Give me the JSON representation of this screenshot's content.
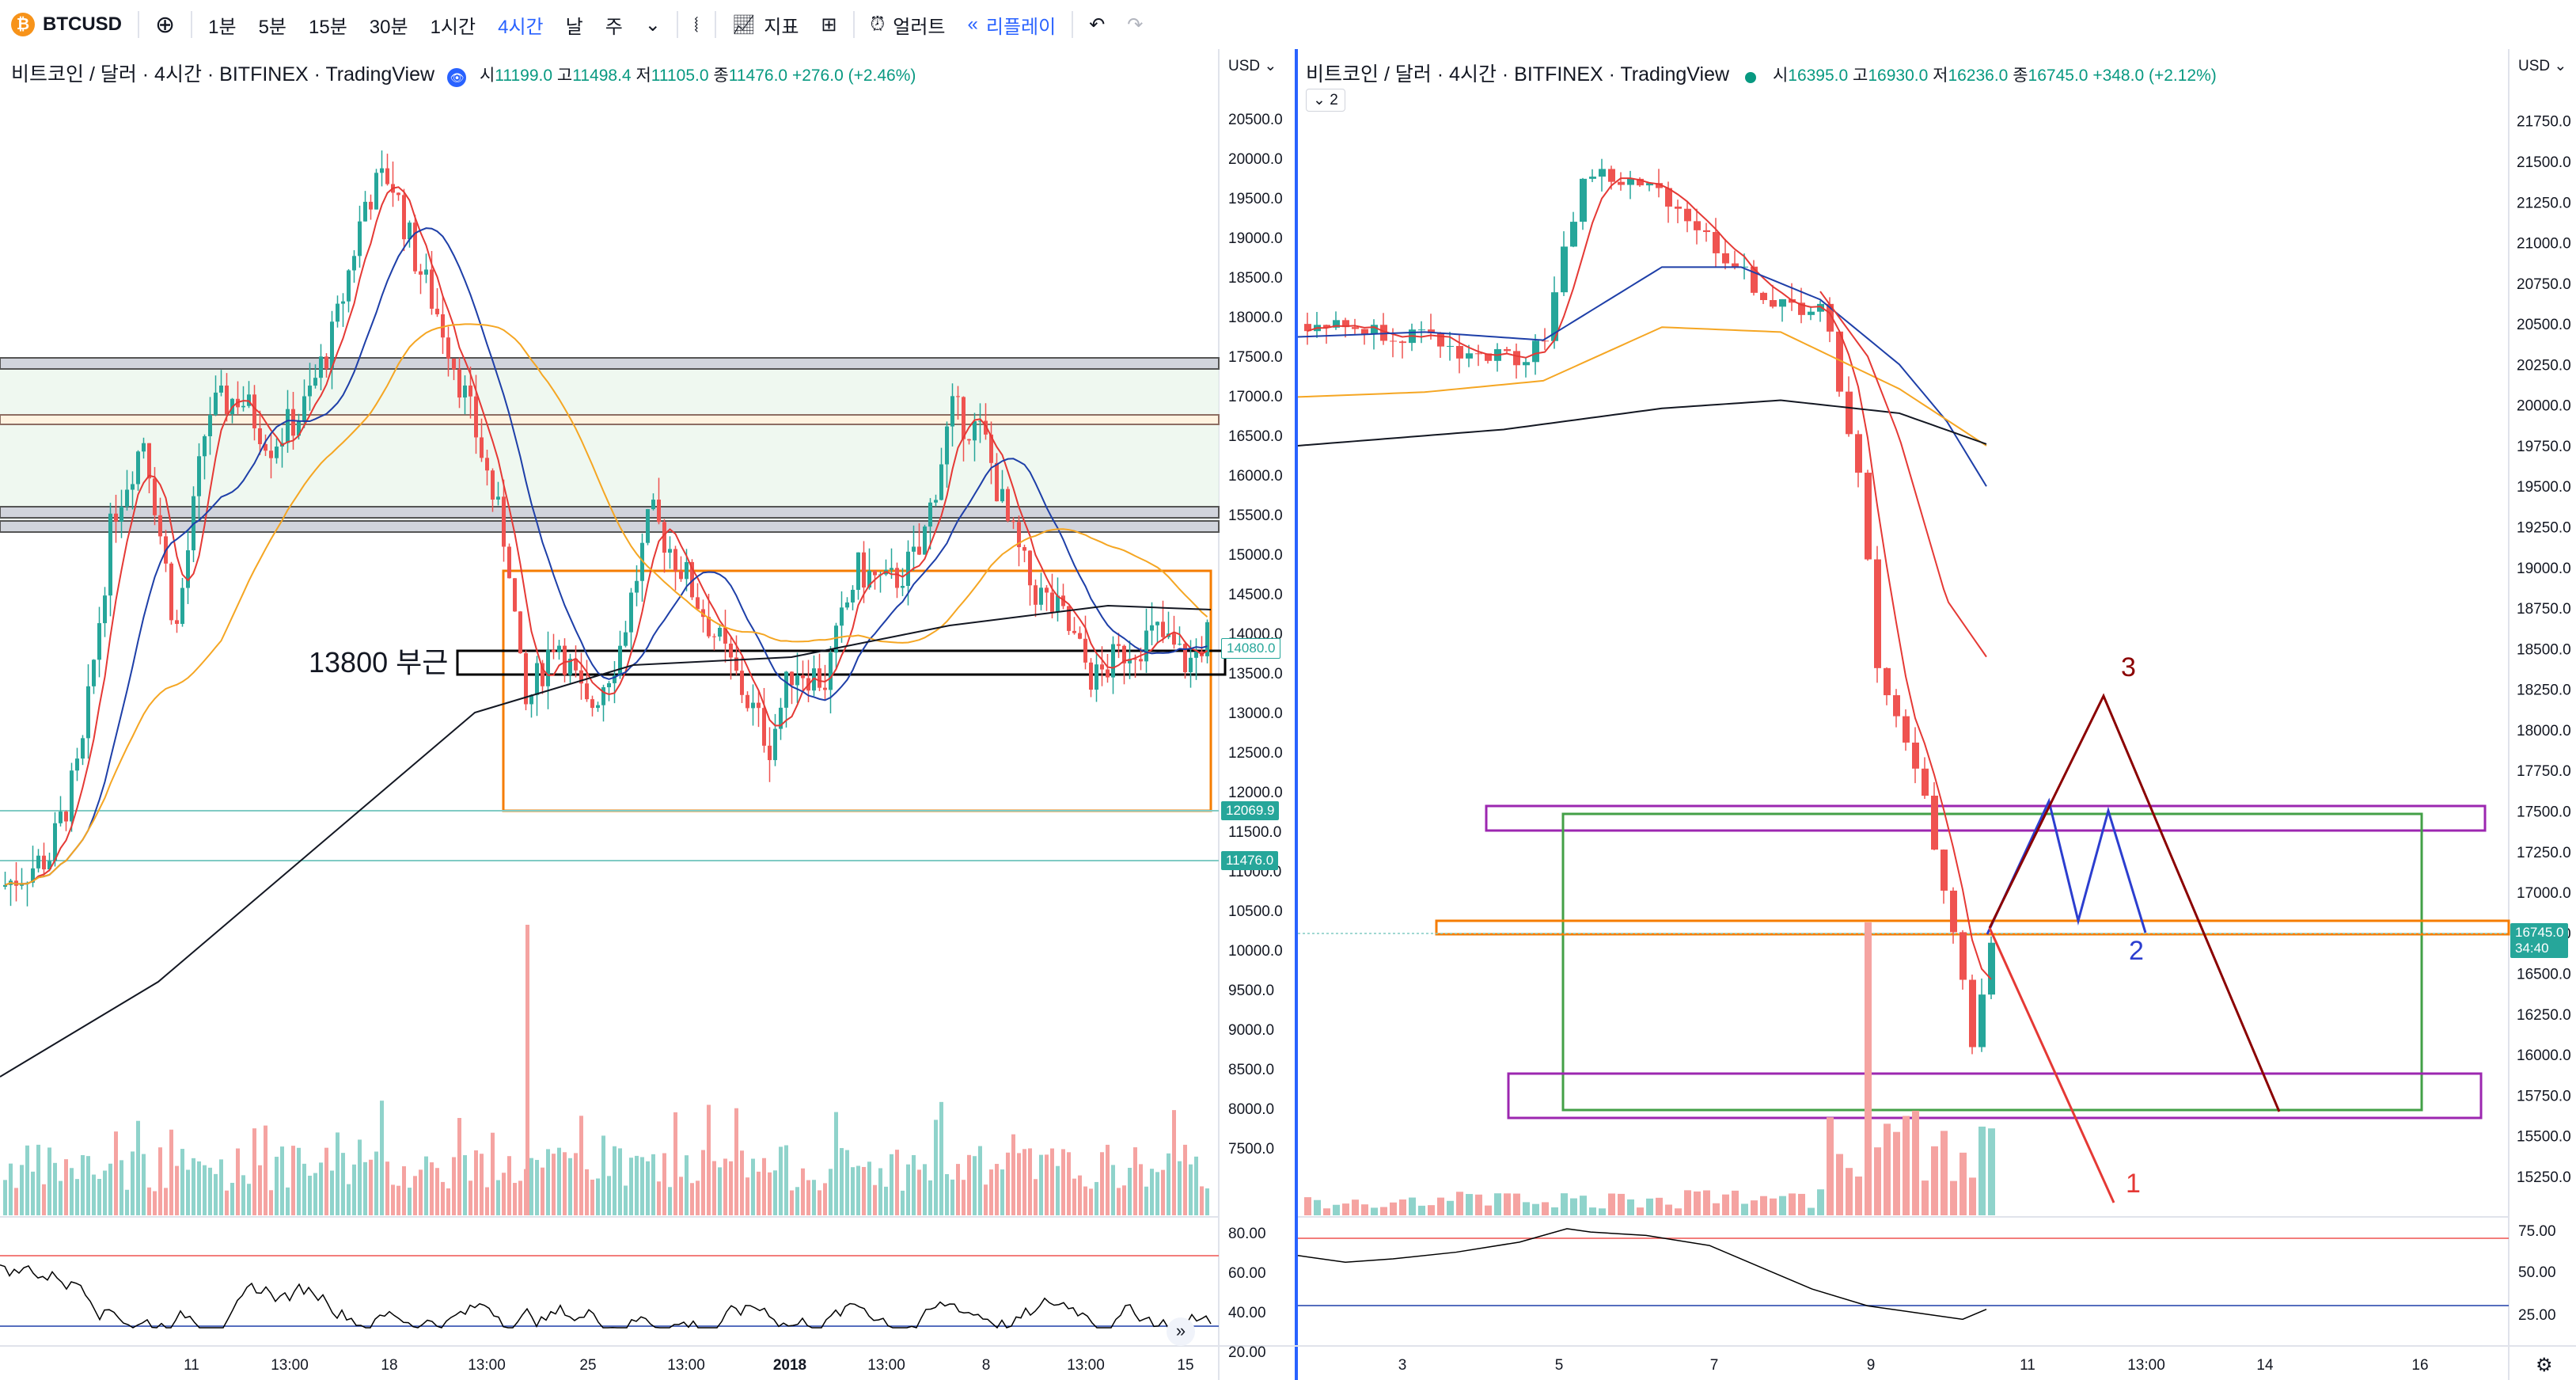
{
  "toolbar": {
    "symbol": "BTCUSD",
    "intervals": [
      "1분",
      "5분",
      "15분",
      "30분",
      "1시간",
      "4시간",
      "날",
      "주"
    ],
    "active_interval": "4시간",
    "indicators_label": "지표",
    "alert_label": "얼러트",
    "replay_label": "리플레이"
  },
  "left_pane": {
    "title": "비트코인 / 달러 · 4시간 · BITFINEX · TradingView",
    "ohlc": {
      "o_label": "시",
      "o": "11199.0",
      "h_label": "고",
      "h": "11498.4",
      "l_label": "저",
      "l": "11105.0",
      "c_label": "종",
      "c": "11476.0",
      "change": "+276.0 (+2.46%)"
    },
    "currency": "USD",
    "price_ticks": [
      "20500.0",
      "20000.0",
      "19500.0",
      "19000.0",
      "18500.0",
      "18000.0",
      "17500.0",
      "17000.0",
      "16500.0",
      "16000.0",
      "15500.0",
      "15000.0",
      "14500.0",
      "14000.0",
      "13500.0",
      "13000.0",
      "12500.0",
      "12000.0",
      "11500.0",
      "11000.0",
      "10500.0",
      "10000.0",
      "9500.0",
      "9000.0",
      "8500.0",
      "8000.0",
      "7500.0"
    ],
    "price_tags": [
      {
        "text": "14080.0",
        "style": "outline-teal"
      },
      {
        "text": "12069.9",
        "style": "teal"
      },
      {
        "text": "11476.0",
        "style": "teal"
      }
    ],
    "rsi_ticks": [
      "80.00",
      "60.00",
      "40.00",
      "20.00"
    ],
    "time_ticks": [
      "11",
      "13:00",
      "18",
      "13:00",
      "25",
      "13:00",
      "2018",
      "13:00",
      "8",
      "13:00",
      "15"
    ],
    "annotation": "13800 부근"
  },
  "right_pane": {
    "title": "비트코인 / 달러 · 4시간 · BITFINEX · TradingView",
    "ohlc": {
      "o_label": "시",
      "o": "16395.0",
      "h_label": "고",
      "h": "16930.0",
      "l_label": "저",
      "l": "16236.0",
      "c_label": "종",
      "c": "16745.0",
      "change": "+348.0 (+2.12%)"
    },
    "indicator_count": "2",
    "currency": "USD",
    "price_ticks": [
      "21750.0",
      "21500.0",
      "21250.0",
      "21000.0",
      "20750.0",
      "20500.0",
      "20250.0",
      "20000.0",
      "19750.0",
      "19500.0",
      "19250.0",
      "19000.0",
      "18750.0",
      "18500.0",
      "18250.0",
      "18000.0",
      "17750.0",
      "17500.0",
      "17250.0",
      "17000.0",
      "16750.0",
      "16500.0",
      "16250.0",
      "16000.0",
      "15750.0",
      "15500.0",
      "15250.0"
    ],
    "price_tag": {
      "text": "16745.0",
      "sub": "34:40"
    },
    "rsi_ticks": [
      "75.00",
      "50.00",
      "25.00"
    ],
    "time_ticks": [
      "3",
      "5",
      "7",
      "9",
      "11",
      "13:00",
      "14",
      "16"
    ],
    "wave_labels": [
      "1",
      "2",
      "3"
    ]
  },
  "colors": {
    "up": "#26a69a",
    "down": "#ef5350",
    "ma_red": "#e53935",
    "ma_blue": "#1e3fa8",
    "ma_orange": "#f5a623",
    "ma_black": "#131722",
    "accent": "#2962ff",
    "zone_orange": "#f57c00",
    "zone_purple": "#9c27b0",
    "zone_green": "#43a047"
  }
}
